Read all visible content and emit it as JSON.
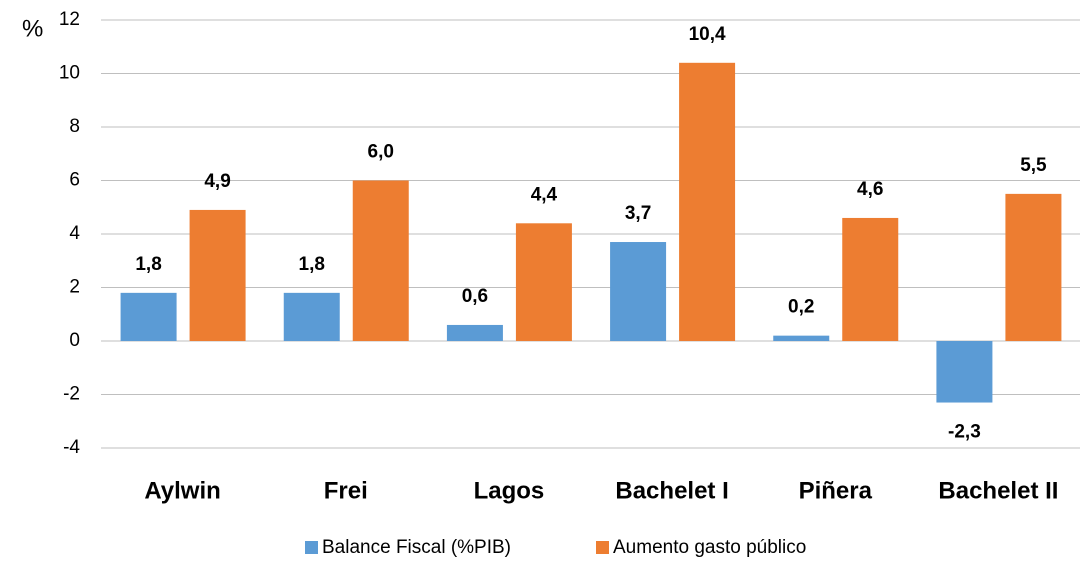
{
  "chart_data": {
    "type": "bar",
    "y_label": "%",
    "categories": [
      "Aylwin",
      "Frei",
      "Lagos",
      "Bachelet I",
      "Piñera",
      "Bachelet II"
    ],
    "series": [
      {
        "name": "Balance Fiscal (%PIB)",
        "color": "#5b9bd5",
        "values": [
          1.8,
          1.8,
          0.6,
          3.7,
          0.2,
          -2.3
        ],
        "value_labels": [
          "1,8",
          "1,8",
          "0,6",
          "3,7",
          "0,2",
          "-2,3"
        ]
      },
      {
        "name": "Aumento gasto público",
        "color": "#ed7d31",
        "values": [
          4.9,
          6.0,
          4.4,
          10.4,
          4.6,
          5.5
        ],
        "value_labels": [
          "4,9",
          "6,0",
          "4,4",
          "10,4",
          "4,6",
          "5,5"
        ]
      }
    ],
    "ylim": [
      -4,
      12
    ],
    "yticks": [
      -4,
      -2,
      0,
      2,
      4,
      6,
      8,
      10,
      12
    ],
    "grid": true,
    "legend": "bottom"
  }
}
